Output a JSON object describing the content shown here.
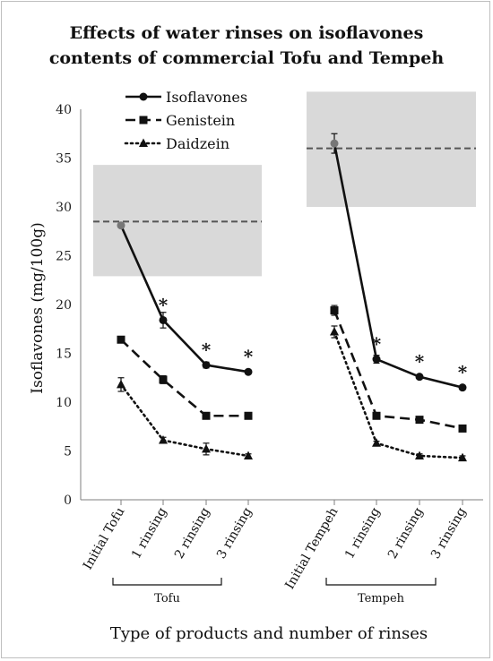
{
  "chart_data": {
    "type": "line",
    "title": "Effects of water rinses on isoflavones contents of commercial Tofu and Tempeh",
    "title_lines": [
      "Effects of water rinses on isoflavones",
      "contents of commercial Tofu and Tempeh"
    ],
    "xlabel": "Type of products and number of rinses",
    "ylabel": "Isoflavones (mg/100g)",
    "ylim": [
      0,
      40
    ],
    "yticks": [
      0,
      5,
      10,
      15,
      20,
      25,
      30,
      35,
      40
    ],
    "grid": false,
    "legend_position": "top-left",
    "categories": [
      "Initial Tofu",
      "1 rinsing",
      "2 rinsing",
      "3 rinsing",
      "Initial Tempeh",
      "1 rinsing",
      "2 rinsing",
      "3 rinsing"
    ],
    "groups": [
      {
        "label": "Tofu",
        "categories": [
          0,
          3
        ]
      },
      {
        "label": "Tempeh",
        "categories": [
          4,
          7
        ]
      }
    ],
    "series": [
      {
        "name": "Isoflavones",
        "marker": "circle",
        "line": "solid",
        "segments": [
          [
            28.1,
            18.4,
            13.8,
            13.1
          ],
          [
            36.5,
            14.4,
            12.6,
            11.5
          ]
        ],
        "errors": [
          [
            0.2,
            0.8,
            0.3,
            0.2
          ],
          [
            1.0,
            0.4,
            0.2,
            0.2
          ]
        ]
      },
      {
        "name": "Genistein",
        "marker": "square",
        "line": "dashed",
        "segments": [
          [
            16.4,
            12.3,
            8.6,
            8.6
          ],
          [
            19.4,
            8.6,
            8.2,
            7.3
          ]
        ],
        "errors": [
          [
            0.2,
            0.4,
            0.3,
            0.2
          ],
          [
            0.5,
            0.3,
            0.3,
            0.2
          ]
        ]
      },
      {
        "name": "Daidzein",
        "marker": "triangle",
        "line": "dotted",
        "segments": [
          [
            11.8,
            6.1,
            5.2,
            4.5
          ],
          [
            17.2,
            5.8,
            4.5,
            4.3
          ]
        ],
        "errors": [
          [
            0.7,
            0.3,
            0.6,
            0.2
          ],
          [
            0.6,
            0.2,
            0.2,
            0.2
          ]
        ]
      }
    ],
    "reference_bands": [
      {
        "categories": [
          0,
          3
        ],
        "low": 22.9,
        "high": 34.3,
        "mean": 28.5
      },
      {
        "categories": [
          4,
          7
        ],
        "low": 30.0,
        "high": 41.8,
        "mean": 36.0
      }
    ],
    "significance_markers": [
      {
        "category": 1,
        "label": "*",
        "above": 18.4
      },
      {
        "category": 2,
        "label": "*",
        "above": 13.8
      },
      {
        "category": 3,
        "label": "*",
        "above": 13.1
      },
      {
        "category": 5,
        "label": "*",
        "above": 14.4
      },
      {
        "category": 6,
        "label": "*",
        "above": 12.6
      },
      {
        "category": 7,
        "label": "*",
        "above": 11.5
      }
    ],
    "colors": {
      "line": "#111111",
      "band": "#d9d9d9",
      "band_mean": "#555555",
      "first_point": "#777777"
    }
  }
}
